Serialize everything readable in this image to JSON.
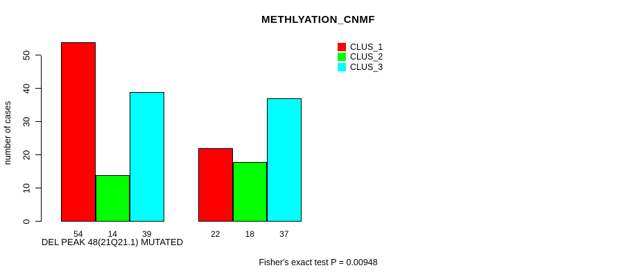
{
  "chart_data": {
    "type": "bar",
    "title": "METHLYATION_CNMF",
    "ylabel": "number of cases",
    "xlabel": "DEL PEAK 48(21Q21.1) MUTATED",
    "yticks": [
      0,
      10,
      20,
      30,
      40,
      50
    ],
    "ylim": [
      0,
      54
    ],
    "grid": false,
    "legend_position": "top-right",
    "groups": [
      {
        "label": "DEL PEAK 48(21Q21.1) MUTATED",
        "bar_values": [
          54,
          14,
          39
        ]
      },
      {
        "label": "",
        "bar_values": [
          22,
          18,
          37
        ]
      }
    ],
    "series": [
      {
        "name": "CLUS_1",
        "color": "#FF0000",
        "values": [
          54,
          22
        ]
      },
      {
        "name": "CLUS_2",
        "color": "#00FF00",
        "values": [
          14,
          18
        ]
      },
      {
        "name": "CLUS_3",
        "color": "#00FFFF",
        "values": [
          39,
          37
        ]
      }
    ],
    "annotation": "Fisher's exact test P = 0.00948"
  }
}
